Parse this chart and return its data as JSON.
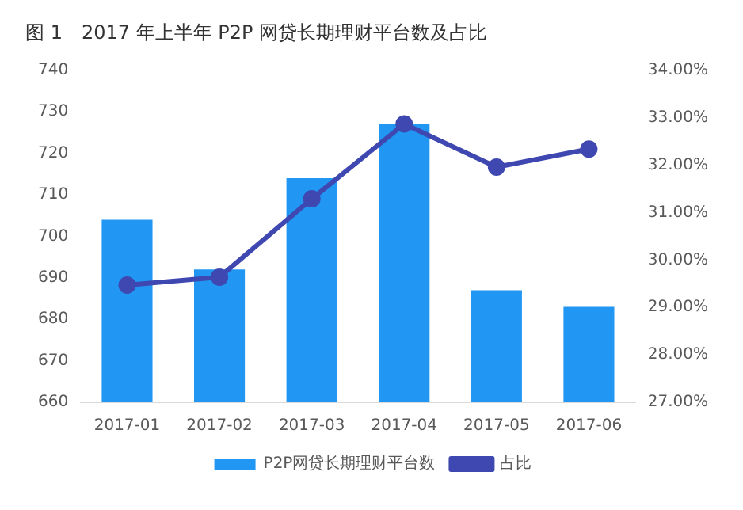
{
  "chart_data": {
    "type": "bar",
    "title": "图 1　2017 年上半年 P2P 网贷长期理财平台数及占比",
    "categories": [
      "2017-01",
      "2017-02",
      "2017-03",
      "2017-04",
      "2017-05",
      "2017-06"
    ],
    "series": [
      {
        "name": "P2P网贷长期理财平台数",
        "color": "#2196f3",
        "values": [
          704,
          692,
          714,
          727,
          687,
          683
        ]
      },
      {
        "name": "占比",
        "type": "line",
        "axis": "y2",
        "color": "#3f48b0",
        "values": [
          29.47,
          29.64,
          31.29,
          32.87,
          31.96,
          32.34
        ]
      }
    ],
    "ylim": [
      660,
      740
    ],
    "yticks": [
      660,
      670,
      680,
      690,
      700,
      710,
      720,
      730,
      740
    ],
    "y2lim": [
      27,
      34
    ],
    "y2ticks": [
      {
        "value": 27,
        "label": "27.00%"
      },
      {
        "value": 28,
        "label": "28.00%"
      },
      {
        "value": 29,
        "label": "29.00%"
      },
      {
        "value": 30,
        "label": "30.00%"
      },
      {
        "value": 31,
        "label": "31.00%"
      },
      {
        "value": 32,
        "label": "32.00%"
      },
      {
        "value": 33,
        "label": "33.00%"
      },
      {
        "value": 34,
        "label": "34.00%"
      }
    ],
    "grid": false,
    "legend": "bottom",
    "marker": "circle",
    "line_style": "solid"
  }
}
